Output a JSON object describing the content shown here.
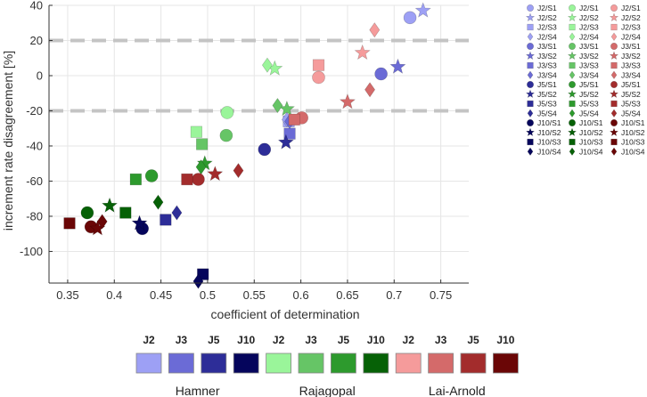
{
  "chart_data": {
    "type": "scatter",
    "xlabel": "coefficient of determination",
    "ylabel": "increment rate disagreement [%]",
    "xlim": [
      0.33,
      0.78
    ],
    "ylim": [
      -118,
      40
    ],
    "xticks": [
      0.35,
      0.4,
      0.45,
      0.5,
      0.55,
      0.6,
      0.65,
      0.7,
      0.75
    ],
    "xtick_labels": [
      "0.35",
      "0.4",
      "0.45",
      "0.5",
      "0.55",
      "0.6",
      "0.65",
      "0.7",
      "0.75"
    ],
    "yticks": [
      -100,
      -80,
      -60,
      -40,
      -20,
      0,
      20,
      40
    ],
    "ytick_labels": [
      "-100",
      "-80",
      "-60",
      "-40",
      "-20",
      "0",
      "20",
      "40"
    ],
    "reference_lines": [
      20,
      -20
    ],
    "models": [
      {
        "name": "Hamner",
        "colors": {
          "J2": "#9da0f5",
          "J3": "#6b6bd6",
          "J5": "#2d2d98",
          "J10": "#05055c"
        },
        "points": {
          "J2": {
            "S1": [
              0.717,
              33
            ],
            "S2": [
              0.731,
              37
            ],
            "S3": [
              0.587,
              -26
            ],
            "S4": [
              0.585,
              -25
            ]
          },
          "J3": {
            "S1": [
              0.686,
              1
            ],
            "S2": [
              0.704,
              5
            ],
            "S3": [
              0.588,
              -33
            ],
            "S4": [
              0.588,
              -26
            ]
          },
          "J5": {
            "S1": [
              0.561,
              -42
            ],
            "S2": [
              0.584,
              -38
            ],
            "S3": [
              0.455,
              -82
            ],
            "S4": [
              0.467,
              -78
            ]
          },
          "J10": {
            "S1": [
              0.43,
              -87
            ],
            "S2": [
              0.427,
              -84
            ],
            "S3": [
              0.495,
              -113
            ],
            "S4": [
              0.49,
              -117
            ]
          }
        }
      },
      {
        "name": "Rajagopal",
        "colors": {
          "J2": "#9af59a",
          "J3": "#66c566",
          "J5": "#2d9a2d",
          "J10": "#066106"
        },
        "points": {
          "J2": {
            "S1": [
              0.521,
              -21
            ],
            "S2": [
              0.572,
              4
            ],
            "S3": [
              0.488,
              -32
            ],
            "S4": [
              0.564,
              6
            ]
          },
          "J3": {
            "S1": [
              0.52,
              -34
            ],
            "S2": [
              0.585,
              -19
            ],
            "S3": [
              0.494,
              -39
            ],
            "S4": [
              0.575,
              -17
            ]
          },
          "J5": {
            "S1": [
              0.44,
              -57
            ],
            "S2": [
              0.497,
              -50
            ],
            "S3": [
              0.423,
              -59
            ],
            "S4": [
              0.493,
              -52
            ]
          },
          "J10": {
            "S1": [
              0.371,
              -78
            ],
            "S2": [
              0.395,
              -74
            ],
            "S3": [
              0.412,
              -78
            ],
            "S4": [
              0.447,
              -72
            ]
          }
        }
      },
      {
        "name": "Lai-Arnold",
        "colors": {
          "J2": "#f59b9b",
          "J3": "#d46a6a",
          "J5": "#a32c2c",
          "J10": "#6a0606"
        },
        "points": {
          "J2": {
            "S1": [
              0.619,
              -1
            ],
            "S2": [
              0.666,
              13
            ],
            "S3": [
              0.619,
              6
            ],
            "S4": [
              0.679,
              26
            ]
          },
          "J3": {
            "S1": [
              0.601,
              -24
            ],
            "S2": [
              0.65,
              -15
            ],
            "S3": [
              0.593,
              -25
            ],
            "S4": [
              0.674,
              -8
            ]
          },
          "J5": {
            "S1": [
              0.49,
              -59
            ],
            "S2": [
              0.508,
              -56
            ],
            "S3": [
              0.478,
              -59
            ],
            "S4": [
              0.533,
              -54
            ]
          },
          "J10": {
            "S1": [
              0.375,
              -86
            ],
            "S2": [
              0.382,
              -87
            ],
            "S3": [
              0.352,
              -84
            ],
            "S4": [
              0.387,
              -83
            ]
          }
        }
      }
    ],
    "joints": [
      "J2",
      "J3",
      "J5",
      "J10"
    ],
    "series_marker_shapes": {
      "S1": "circle",
      "S2": "star",
      "S3": "square",
      "S4": "diamond"
    },
    "legend": {
      "placement": "right",
      "columns": [
        [
          "J2/S1",
          "J2/S2",
          "J2/S3",
          "J2/S4",
          "J3/S1",
          "J3/S2",
          "J3/S3",
          "J3/S4",
          "J5/S1",
          "J5/S2",
          "J5/S3",
          "J5/S4",
          "J10/S1",
          "J10/S2",
          "J10/S3",
          "J10/S4"
        ],
        [
          "J2/S1",
          "J2/S2",
          "J2/S3",
          "J2/S4",
          "J3/S1",
          "J3/S2",
          "J3/S3",
          "J3/S4",
          "J5/S1",
          "J5/S2",
          "J5/S3",
          "J5/S4",
          "J10/S1",
          "J10/S2",
          "J10/S3",
          "J10/S4"
        ],
        [
          "J2/S1",
          "J2/S2",
          "J2/S3",
          "J2/S4",
          "J3/S1",
          "J3/S2",
          "J3/S3",
          "J3/S4",
          "J5/S1",
          "J5/S2",
          "J5/S3",
          "J5/S4",
          "J10/S1",
          "J10/S2",
          "J10/S3",
          "J10/S4"
        ]
      ]
    },
    "color_key": {
      "swatch_labels": [
        "J2",
        "J3",
        "J5",
        "J10",
        "J2",
        "J3",
        "J5",
        "J10",
        "J2",
        "J3",
        "J5",
        "J10"
      ],
      "group_labels": [
        "Hamner",
        "Rajagopal",
        "Lai-Arnold"
      ]
    }
  }
}
